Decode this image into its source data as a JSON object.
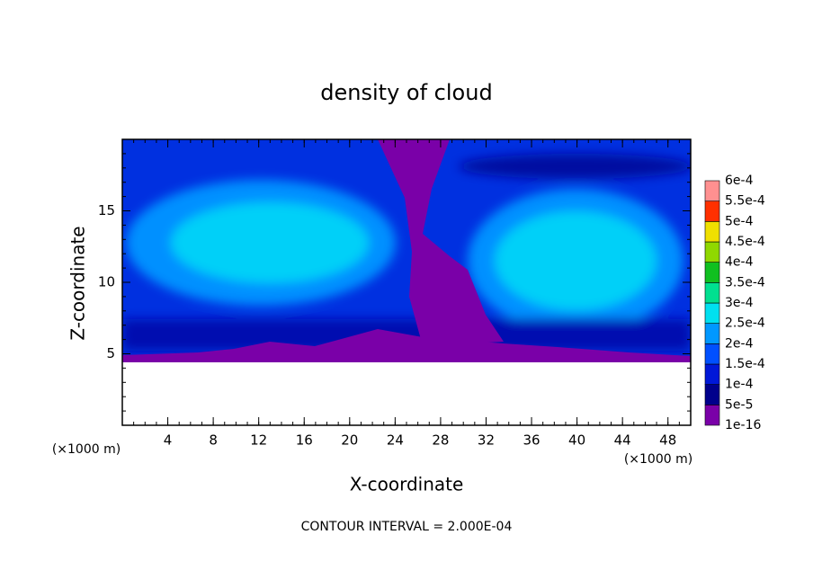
{
  "chart_data": {
    "type": "contour",
    "title": "density of cloud",
    "x_label": "X-coordinate",
    "y_label": "Z-coordinate",
    "x_unit_label": "(×1000 m)",
    "y_unit_label": "(×1000 m)",
    "footer": "CONTOUR INTERVAL = 2.000E-04",
    "xlim": [
      0,
      50
    ],
    "ylim": [
      0,
      20
    ],
    "xticks": [
      4,
      8,
      12,
      16,
      20,
      24,
      28,
      32,
      36,
      40,
      44,
      48
    ],
    "yticks": [
      5,
      10,
      15
    ],
    "colorbar": {
      "levels": [
        1e-16,
        {
          "value": 5e-05,
          "label": "5e-5"
        },
        {
          "value": 0.0001,
          "label": "1e-4"
        },
        {
          "value": 0.00015,
          "label": "1.5e-4"
        },
        {
          "value": 0.0002,
          "label": "2e-4"
        },
        {
          "value": 0.00025,
          "label": "2.5e-4"
        },
        {
          "value": 0.0003,
          "label": "3e-4"
        },
        {
          "value": 0.00035,
          "label": "3.5e-4"
        },
        {
          "value": 0.0004,
          "label": "4e-4"
        },
        {
          "value": 0.00045,
          "label": "4.5e-4"
        },
        {
          "value": 0.0005,
          "label": "5e-4"
        },
        {
          "value": 0.00055,
          "label": "5.5e-4"
        },
        {
          "value": 0.0006,
          "label": "6e-4"
        }
      ],
      "colors": [
        "#7a00a8",
        "#00008c",
        "#0018d8",
        "#0050ff",
        "#0098ff",
        "#00e0f0",
        "#00e090",
        "#10c020",
        "#90d800",
        "#f0e000",
        "#ff3000",
        "#ff9090"
      ]
    }
  }
}
